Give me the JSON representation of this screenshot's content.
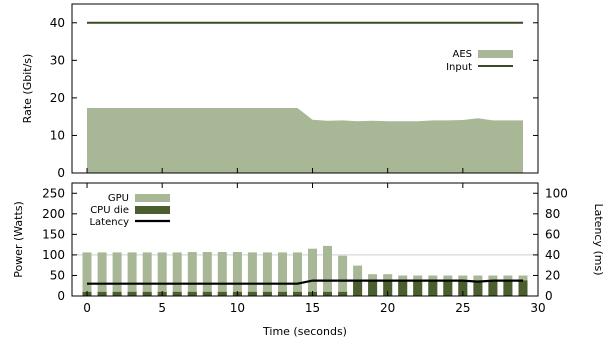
{
  "chart_data": [
    {
      "type": "area",
      "ylabel": "Rate (Gbit/s)",
      "ylim": [
        0,
        45
      ],
      "yticks": [
        0,
        10,
        20,
        30,
        40
      ],
      "legend_position": "right",
      "x": [
        0,
        1,
        2,
        3,
        4,
        5,
        6,
        7,
        8,
        9,
        10,
        11,
        12,
        13,
        14,
        15,
        16,
        17,
        18,
        19,
        20,
        21,
        22,
        23,
        24,
        25,
        26,
        27,
        28,
        29
      ],
      "series": [
        {
          "name": "AES",
          "style": "area",
          "color": "#a8b896",
          "values": [
            17.3,
            17.3,
            17.3,
            17.3,
            17.3,
            17.3,
            17.3,
            17.3,
            17.3,
            17.3,
            17.3,
            17.3,
            17.3,
            17.3,
            17.3,
            14.2,
            13.9,
            14.0,
            13.8,
            13.9,
            13.8,
            13.8,
            13.8,
            14.0,
            14.0,
            14.1,
            14.6,
            14.0,
            14.0,
            14.0
          ]
        },
        {
          "name": "Input",
          "style": "line",
          "color": "#3a4a22",
          "values": [
            40,
            40,
            40,
            40,
            40,
            40,
            40,
            40,
            40,
            40,
            40,
            40,
            40,
            40,
            40,
            40,
            40,
            40,
            40,
            40,
            40,
            40,
            40,
            40,
            40,
            40,
            40,
            40,
            40,
            40
          ]
        }
      ]
    },
    {
      "type": "bar",
      "xlabel": "Time (seconds)",
      "xlim": [
        -1,
        30
      ],
      "xticks": [
        0,
        5,
        10,
        15,
        20,
        25,
        30
      ],
      "ylabel": "Power (Watts)",
      "ylim": [
        0,
        275
      ],
      "yticks": [
        0,
        50,
        100,
        150,
        200,
        250
      ],
      "y2label": "Latency (ms)",
      "y2lim": [
        0,
        110
      ],
      "y2ticks": [
        0,
        20,
        40,
        60,
        80,
        100
      ],
      "grid_y": [
        100
      ],
      "legend_position": "top-left",
      "x": [
        0,
        1,
        2,
        3,
        4,
        5,
        6,
        7,
        8,
        9,
        10,
        11,
        12,
        13,
        14,
        15,
        16,
        17,
        18,
        19,
        20,
        21,
        22,
        23,
        24,
        25,
        26,
        27,
        28,
        29
      ],
      "series": [
        {
          "name": "GPU",
          "style": "bar",
          "color": "#a8b896",
          "values": [
            106,
            106,
            106,
            106,
            106,
            106,
            106,
            107,
            107,
            107,
            107,
            106,
            106,
            106,
            106,
            115,
            122,
            98,
            74,
            53,
            53,
            50,
            50,
            50,
            50,
            50,
            50,
            50,
            50,
            50
          ]
        },
        {
          "name": "CPU die",
          "style": "bar",
          "color": "#4a5e2e",
          "values": [
            10,
            10,
            10,
            10,
            10,
            10,
            10,
            10,
            10,
            10,
            10,
            10,
            10,
            10,
            10,
            10,
            10,
            10,
            38,
            38,
            38,
            38,
            38,
            38,
            38,
            38,
            38,
            38,
            38,
            38
          ]
        },
        {
          "name": "Latency",
          "style": "line",
          "axis": "y2",
          "color": "#000000",
          "values": [
            12,
            12,
            12,
            12,
            12,
            12,
            12,
            12,
            12,
            12,
            12,
            12,
            12,
            12,
            12,
            15,
            15,
            15,
            15,
            15,
            15,
            15,
            15,
            15,
            15,
            15,
            14,
            15,
            15,
            15
          ]
        }
      ]
    }
  ]
}
